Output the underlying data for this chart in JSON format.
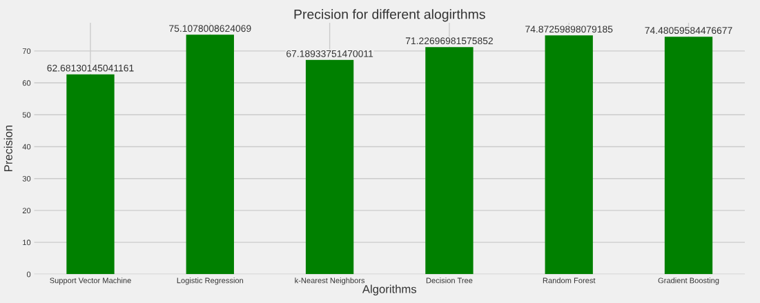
{
  "chart_data": {
    "type": "bar",
    "title": "Precision for different alogirthms",
    "xlabel": "Algorithms",
    "ylabel": "Precision",
    "categories": [
      "Support Vector Machine",
      "Logistic Regression",
      "k-Nearest Neighbors",
      "Decision Tree",
      "Random Forest",
      "Gradient Boosting"
    ],
    "values": [
      62.68130145041161,
      75.1078008624069,
      67.18933751470011,
      71.22696981575852,
      74.87259898079185,
      74.48059584476677
    ],
    "color": "#008000",
    "ylim": [
      0,
      78.86
    ],
    "yticks": [
      0,
      10,
      20,
      30,
      40,
      50,
      60,
      70
    ],
    "grid": true,
    "data_labels": true
  }
}
